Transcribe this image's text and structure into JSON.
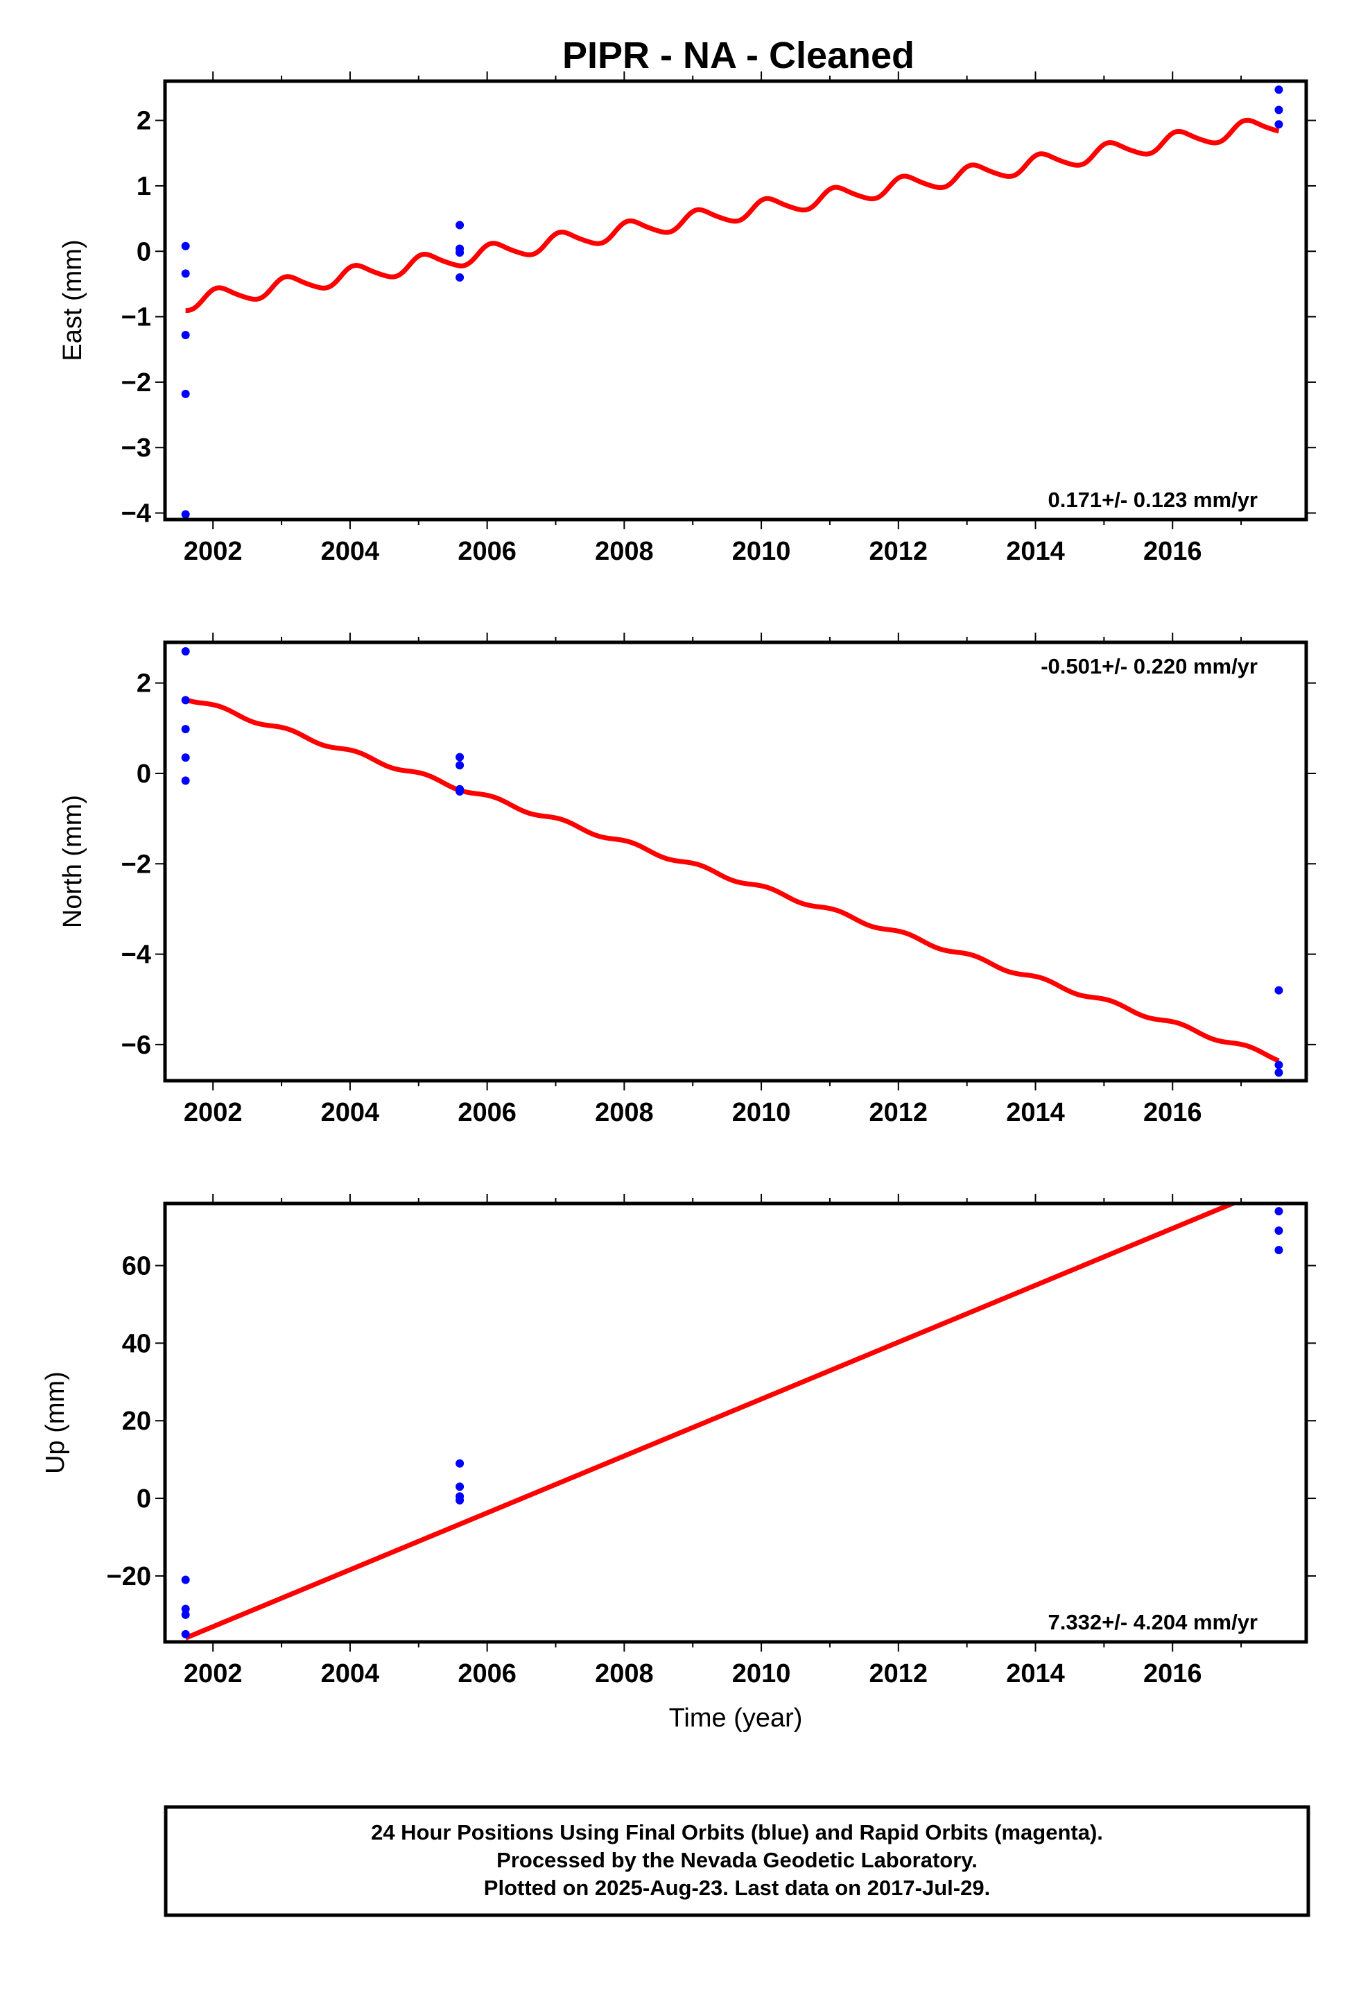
{
  "title": "PIPR  - NA - Cleaned",
  "colors": {
    "final_orbits": "#0000ff",
    "model_fit": "#ff0000",
    "frame": "#000000"
  },
  "chart_data": [
    {
      "type": "scatter",
      "component": "east",
      "ylabel": "East (mm)",
      "xlabel": "",
      "xlim": [
        2001.3,
        2017.95
      ],
      "ylim": [
        -4.1,
        2.6
      ],
      "xticks": [
        2002,
        2004,
        2006,
        2008,
        2010,
        2012,
        2014,
        2016
      ],
      "yticks": [
        -4,
        -3,
        -2,
        -1,
        0,
        1,
        2
      ],
      "ytick_labels": [
        "−4",
        "−3",
        "−2",
        "−1",
        "0",
        "1",
        "2"
      ],
      "rate_text": "0.171+/- 0.123 mm/yr",
      "rate_position": "bottom-right",
      "points": [
        {
          "x": 2001.6,
          "y": 0.08
        },
        {
          "x": 2001.6,
          "y": -0.34
        },
        {
          "x": 2001.6,
          "y": -1.28
        },
        {
          "x": 2001.6,
          "y": -2.18
        },
        {
          "x": 2001.6,
          "y": -4.02
        },
        {
          "x": 2005.6,
          "y": 0.4
        },
        {
          "x": 2005.6,
          "y": 0.04
        },
        {
          "x": 2005.6,
          "y": -0.02
        },
        {
          "x": 2005.6,
          "y": -0.4
        },
        {
          "x": 2017.55,
          "y": 2.47
        },
        {
          "x": 2017.55,
          "y": 2.16
        },
        {
          "x": 2017.55,
          "y": 1.94
        }
      ],
      "model": {
        "segments": [
          {
            "x_start": 2001.6,
            "x_end": 2005.6,
            "intercept": -0.78,
            "slope": 0.171
          },
          {
            "x_start": 2005.6,
            "x_end": 2017.55,
            "intercept": -0.1,
            "slope": 0.171
          }
        ],
        "annual_amplitude": 0.13,
        "semiannual_amplitude": 0.02
      }
    },
    {
      "type": "scatter",
      "component": "north",
      "ylabel": "North (mm)",
      "xlabel": "",
      "xlim": [
        2001.3,
        2017.95
      ],
      "ylim": [
        -6.8,
        2.9
      ],
      "xticks": [
        2002,
        2004,
        2006,
        2008,
        2010,
        2012,
        2014,
        2016
      ],
      "yticks": [
        -6,
        -4,
        -2,
        0,
        2
      ],
      "ytick_labels": [
        "−6",
        "−4",
        "−2",
        "0",
        "2"
      ],
      "rate_text": "-0.501+/- 0.220 mm/yr",
      "rate_position": "top-right",
      "points": [
        {
          "x": 2001.6,
          "y": 2.7
        },
        {
          "x": 2001.6,
          "y": 1.62
        },
        {
          "x": 2001.6,
          "y": 0.98
        },
        {
          "x": 2001.6,
          "y": 0.35
        },
        {
          "x": 2001.6,
          "y": -0.16
        },
        {
          "x": 2005.6,
          "y": 0.36
        },
        {
          "x": 2005.6,
          "y": 0.18
        },
        {
          "x": 2005.6,
          "y": -0.35
        },
        {
          "x": 2005.6,
          "y": -0.4
        },
        {
          "x": 2017.55,
          "y": -4.8
        },
        {
          "x": 2017.55,
          "y": -6.45
        },
        {
          "x": 2017.55,
          "y": -6.62
        }
      ],
      "model": {
        "segments": [
          {
            "x_start": 2001.6,
            "x_end": 2017.55,
            "intercept": 1.68,
            "slope": -0.501
          }
        ],
        "annual_amplitude": 0.05,
        "semiannual_amplitude": 0.0
      }
    },
    {
      "type": "scatter",
      "component": "up",
      "ylabel": "Up (mm)",
      "xlabel": "Time (year)",
      "xlim": [
        2001.3,
        2017.95
      ],
      "ylim": [
        -37,
        76
      ],
      "xticks": [
        2002,
        2004,
        2006,
        2008,
        2010,
        2012,
        2014,
        2016
      ],
      "yticks": [
        -20,
        0,
        20,
        40,
        60
      ],
      "ytick_labels": [
        "−20",
        "0",
        "20",
        "40",
        "60"
      ],
      "rate_text": "7.332+/- 4.204 mm/yr",
      "rate_position": "bottom-right",
      "points": [
        {
          "x": 2001.6,
          "y": -21
        },
        {
          "x": 2001.6,
          "y": -28.5
        },
        {
          "x": 2001.6,
          "y": -30
        },
        {
          "x": 2001.6,
          "y": -35
        },
        {
          "x": 2005.6,
          "y": 9
        },
        {
          "x": 2005.6,
          "y": 3
        },
        {
          "x": 2005.6,
          "y": 0.5
        },
        {
          "x": 2005.6,
          "y": -0.5
        },
        {
          "x": 2017.55,
          "y": 74
        },
        {
          "x": 2017.55,
          "y": 69
        },
        {
          "x": 2017.55,
          "y": 64
        }
      ],
      "model": {
        "segments": [
          {
            "x_start": 2001.6,
            "x_end": 2017.55,
            "intercept": -36,
            "slope": 7.332
          }
        ],
        "annual_amplitude": 0,
        "semiannual_amplitude": 0
      }
    }
  ],
  "footer": {
    "line1": "24 Hour Positions Using Final Orbits (blue) and Rapid Orbits (magenta).",
    "line2": "Processed by the Nevada Geodetic Laboratory.",
    "line3": "Plotted on 2025-Aug-23. Last data on 2017-Jul-29."
  }
}
